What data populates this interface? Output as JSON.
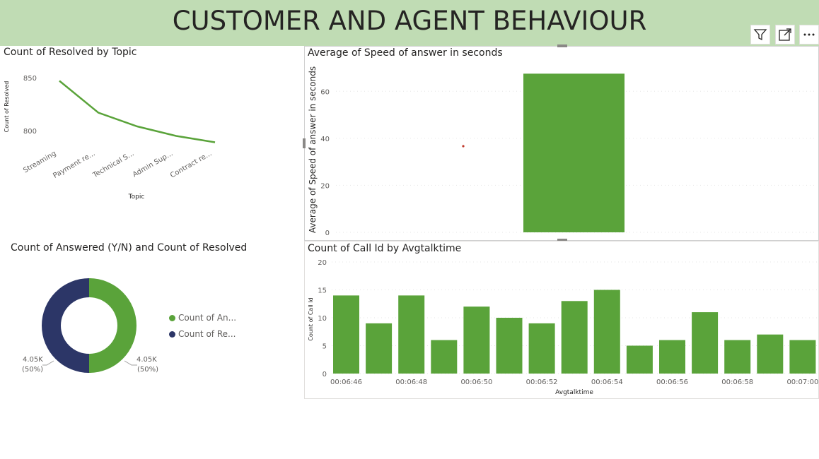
{
  "page": {
    "title": "CUSTOMER AND AGENT BEHAVIOUR"
  },
  "visual_header": {
    "icons": [
      "filter-icon",
      "focus-mode-icon",
      "more-options-icon"
    ]
  },
  "colors": {
    "green": "#5aa33a",
    "navy": "#2c3667",
    "banner": "#c0dcb4"
  },
  "chart_data": [
    {
      "id": "resolved_by_topic",
      "type": "line",
      "title": "Count of Resolved by Topic",
      "xlabel": "Topic",
      "ylabel": "Count of Resolved",
      "categories": [
        "Streaming",
        "Payment re...",
        "Technical S...",
        "Admin Sup...",
        "Contract re..."
      ],
      "values": [
        847,
        817,
        804,
        795,
        789
      ],
      "yticks": [
        "850",
        "800"
      ],
      "ylim": [
        780,
        860
      ]
    },
    {
      "id": "speed_of_answer",
      "type": "bar",
      "title": "Average of Speed of answer in seconds",
      "ylabel": "Average of Speed of answer in seconds",
      "values": [
        67.5
      ],
      "yticks": [
        "0",
        "20",
        "40",
        "60"
      ],
      "ylim": [
        0,
        70
      ]
    },
    {
      "id": "answered_resolved",
      "type": "pie",
      "title": "Count of Answered (Y/N) and Count of Resolved",
      "slices": [
        {
          "name": "Count of An...",
          "value": "4.05K",
          "pct": "(50%)"
        },
        {
          "name": "Count of Re...",
          "value": "4.05K",
          "pct": "(50%)"
        }
      ]
    },
    {
      "id": "callid_by_talktime",
      "type": "bar",
      "title": "Count of Call Id by Avgtalktime",
      "xlabel": "Avgtalktime",
      "ylabel": "Count of Call Id",
      "values": [
        14,
        9,
        14,
        6,
        12,
        10,
        9,
        13,
        15,
        5,
        6,
        11,
        6,
        7,
        6
      ],
      "xticks": [
        "00:06:46",
        "00:06:48",
        "00:06:50",
        "00:06:52",
        "00:06:54",
        "00:06:56",
        "00:06:58",
        "00:07:00"
      ],
      "yticks": [
        "0",
        "5",
        "10",
        "15",
        "20"
      ],
      "ylim": [
        0,
        20
      ]
    }
  ]
}
